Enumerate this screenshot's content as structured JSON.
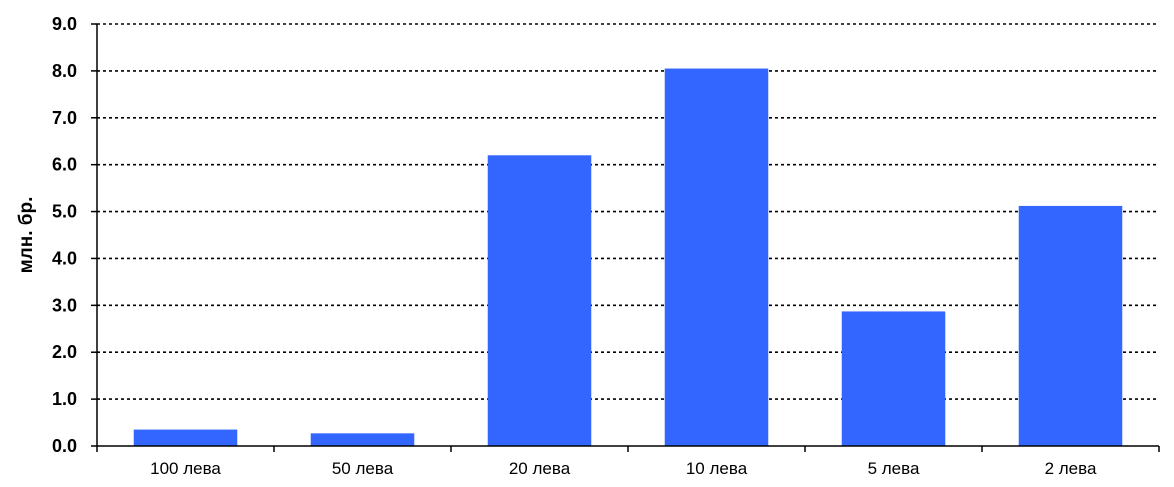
{
  "chart_data": {
    "type": "bar",
    "title": "",
    "xlabel": "",
    "ylabel": "млн. бр.",
    "categories": [
      "100 лева",
      "50 лева",
      "20 лева",
      "10 лева",
      "5 лева",
      "2 лева"
    ],
    "values": [
      0.35,
      0.27,
      6.2,
      8.05,
      2.87,
      5.12
    ],
    "ylim": [
      0,
      9
    ],
    "yticks": [
      "0.0",
      "1.0",
      "2.0",
      "3.0",
      "4.0",
      "5.0",
      "6.0",
      "7.0",
      "8.0",
      "9.0"
    ],
    "grid": true,
    "legend": "none",
    "bar_color": "#3366FF",
    "gridline_color": "#000000"
  }
}
